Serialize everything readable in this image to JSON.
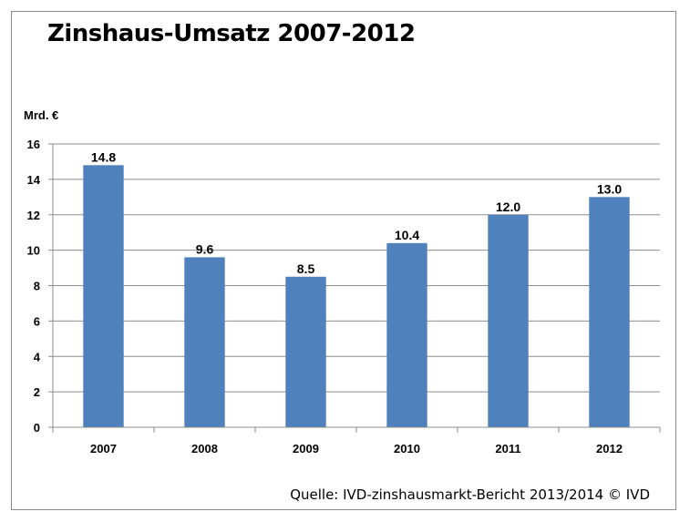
{
  "chart_data": {
    "type": "bar",
    "title": "Zinshaus-Umsatz 2007-2012",
    "ylabel": "Mrd. €",
    "xlabel": "",
    "categories": [
      "2007",
      "2008",
      "2009",
      "2010",
      "2011",
      "2012"
    ],
    "values": [
      14.8,
      9.6,
      8.5,
      10.4,
      12.0,
      13.0
    ],
    "value_labels": [
      "14.8",
      "9.6",
      "8.5",
      "10.4",
      "12.0",
      "13.0"
    ],
    "ylim": [
      0,
      16
    ],
    "yticks": [
      0,
      2,
      4,
      6,
      8,
      10,
      12,
      14,
      16
    ],
    "grid": true,
    "legend": "none",
    "bar_color": "#4f81bd",
    "source": "Quelle: IVD-zinshausmarkt-Bericht 2013/2014 © IVD"
  }
}
